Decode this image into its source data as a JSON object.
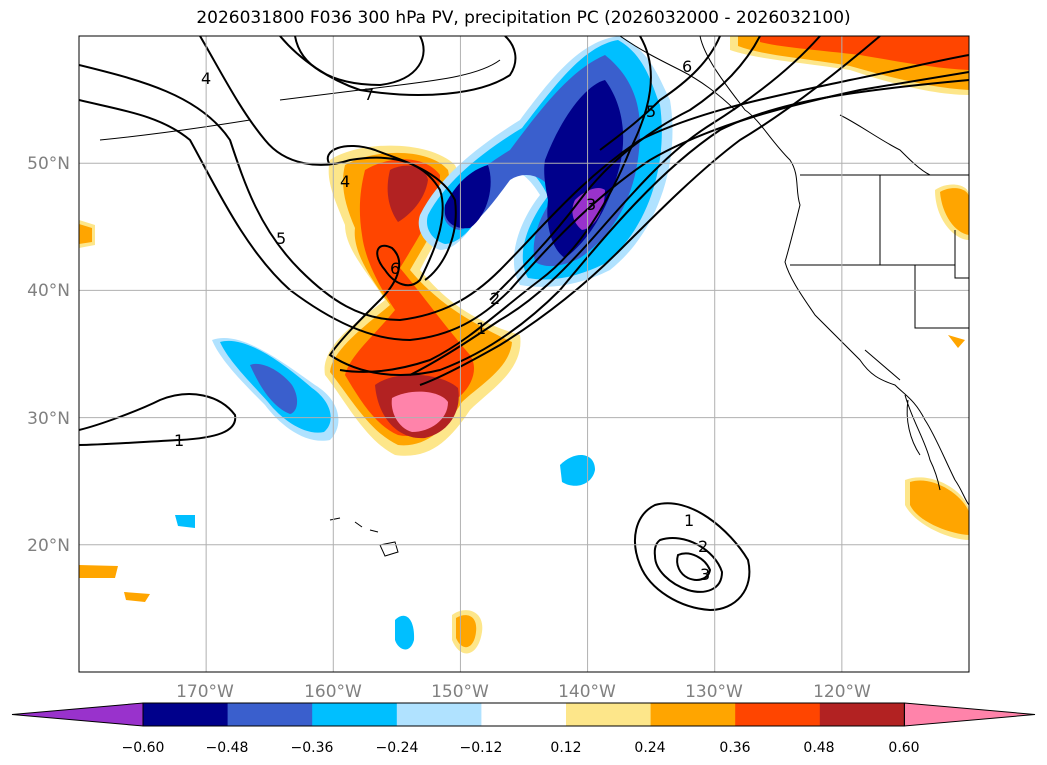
{
  "title": "2026031800 F036 300 hPa PV, precipitation PC (2026032000 - 2026032100)",
  "map": {
    "lon_range": [
      -180,
      -110
    ],
    "lat_range": [
      10,
      60
    ],
    "grid_lons": [
      -170,
      -160,
      -150,
      -140,
      -130,
      -120
    ],
    "grid_lats": [
      20,
      30,
      40,
      50
    ],
    "lon_labels": [
      "170°W",
      "160°W",
      "150°W",
      "140°W",
      "130°W",
      "120°W"
    ],
    "lat_labels": [
      "20°N",
      "30°N",
      "40°N",
      "50°N"
    ],
    "label_color": "#808080"
  },
  "contour_labels": [
    "7",
    "4",
    "4",
    "5",
    "6",
    "2",
    "1",
    "1",
    "3",
    "5",
    "6",
    "1",
    "2",
    "3"
  ],
  "colorbar": {
    "colors": [
      "#9932cc",
      "#00008b",
      "#3a5fcd",
      "#00bfff",
      "#b0e2ff",
      "#ffffff",
      "#fde68a",
      "#ffa500",
      "#ff4500",
      "#b22222",
      "#ff83aa"
    ],
    "tick_labels": [
      "−0.60",
      "−0.48",
      "−0.36",
      "−0.24",
      "−0.12",
      "0.12",
      "0.24",
      "0.36",
      "0.48",
      "0.60"
    ]
  }
}
